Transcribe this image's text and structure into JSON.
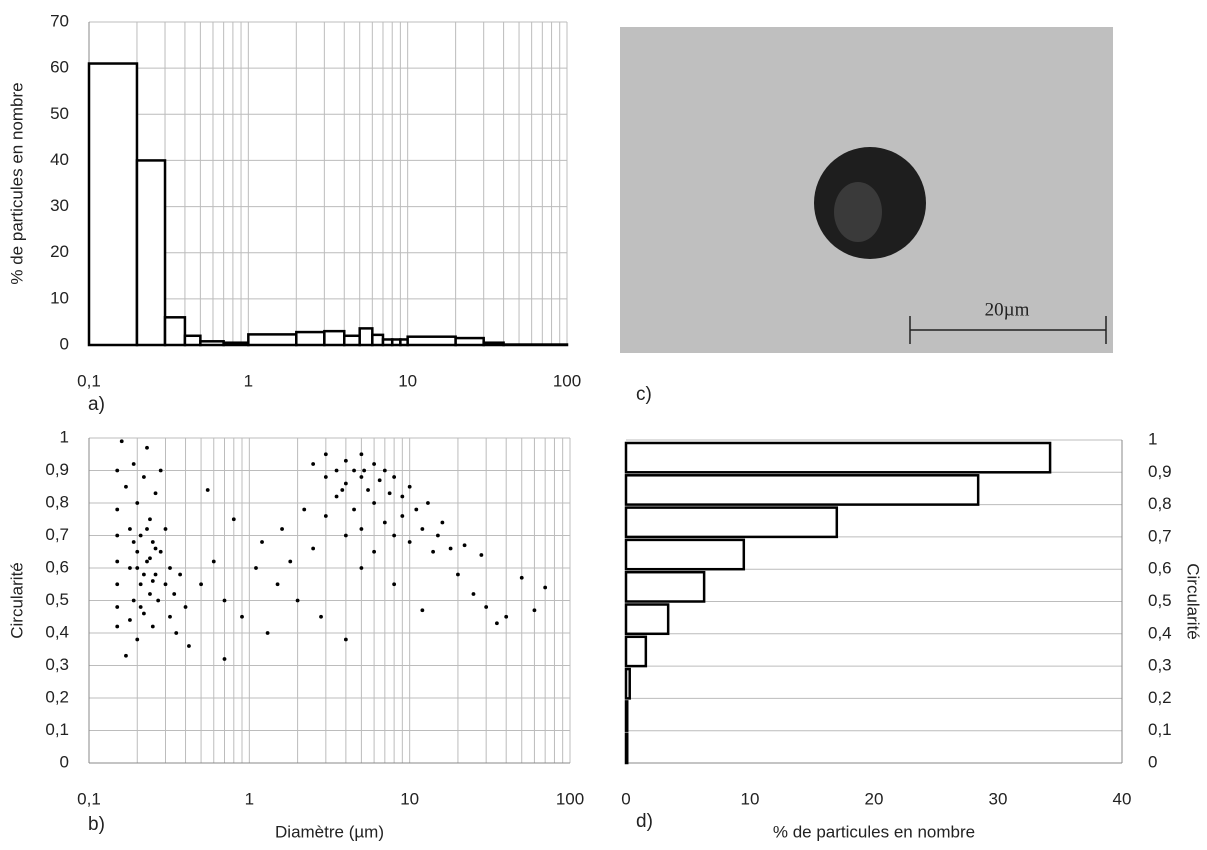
{
  "chart_data": [
    {
      "type": "histogram",
      "panel_label": "a)",
      "y_label": "% de particules en nombre",
      "log_x": true,
      "grid": true,
      "minor_grid": true,
      "color": "#000000",
      "bins": [
        0.1,
        0.2,
        0.3,
        0.4,
        0.5,
        0.7,
        1,
        2,
        3,
        4,
        5,
        6,
        7,
        8,
        9,
        10,
        20,
        30,
        40,
        100
      ],
      "values": [
        61,
        40,
        6,
        2,
        0.8,
        0.5,
        2.3,
        2.8,
        3,
        2,
        3.6,
        2.2,
        1.2,
        1.2,
        1.2,
        1.8,
        1.5,
        0.5,
        0.1
      ],
      "xlim": [
        0.1,
        100
      ],
      "xticks": [
        {
          "value": 0.1,
          "label": "0,1"
        },
        1,
        10,
        100
      ],
      "ylim": [
        0,
        70
      ],
      "yticks": [
        0,
        10,
        20,
        30,
        40,
        50,
        60,
        70
      ]
    },
    {
      "type": "scatter",
      "panel_label": "b)",
      "x_label": "Diamètre (µm)",
      "y_label": "Circularité",
      "log_x": true,
      "grid": true,
      "minor_grid": true,
      "color": "#000000",
      "x": [
        0.15,
        0.15,
        0.15,
        0.15,
        0.15,
        0.15,
        0.15,
        0.16,
        0.17,
        0.17,
        0.18,
        0.18,
        0.19,
        0.19,
        0.2,
        0.2,
        0.2,
        0.21,
        0.21,
        0.22,
        0.22,
        0.23,
        0.23,
        0.24,
        0.24,
        0.25,
        0.25,
        0.26,
        0.26,
        0.27,
        0.28,
        0.28,
        0.3,
        0.3,
        0.32,
        0.32,
        0.34,
        0.35,
        0.37,
        0.4,
        0.42,
        0.2,
        0.22,
        0.24,
        0.26,
        0.19,
        0.23,
        0.21,
        0.25,
        0.18,
        0.5,
        0.55,
        0.6,
        0.7,
        0.7,
        0.8,
        0.9,
        1.1,
        1.2,
        1.3,
        1.5,
        1.6,
        1.8,
        2,
        2.2,
        2.5,
        2.8,
        4,
        5,
        20,
        25,
        30,
        35,
        40,
        50,
        60,
        70,
        28,
        22,
        15,
        12,
        8,
        2.5,
        3,
        3,
        3.5,
        3.5,
        4,
        4,
        4.5,
        4.5,
        5,
        5,
        5.5,
        6,
        6,
        6.5,
        7,
        7,
        7.5,
        8,
        8,
        9,
        9,
        10,
        10,
        11,
        12,
        13,
        14,
        16,
        18,
        4,
        5,
        6,
        3,
        3.8,
        5.2
      ],
      "values": [
        0.62,
        0.48,
        0.78,
        0.9,
        0.55,
        0.7,
        0.42,
        0.99,
        0.33,
        0.85,
        0.6,
        0.72,
        0.5,
        0.92,
        0.65,
        0.38,
        0.8,
        0.55,
        0.7,
        0.46,
        0.88,
        0.62,
        0.97,
        0.52,
        0.75,
        0.68,
        0.42,
        0.58,
        0.83,
        0.5,
        0.65,
        0.9,
        0.55,
        0.72,
        0.45,
        0.6,
        0.52,
        0.4,
        0.58,
        0.48,
        0.36,
        0.6,
        0.58,
        0.63,
        0.66,
        0.68,
        0.72,
        0.48,
        0.56,
        0.44,
        0.55,
        0.84,
        0.62,
        0.32,
        0.5,
        0.75,
        0.45,
        0.6,
        0.68,
        0.4,
        0.55,
        0.72,
        0.62,
        0.5,
        0.78,
        0.66,
        0.45,
        0.38,
        0.6,
        0.58,
        0.52,
        0.48,
        0.43,
        0.45,
        0.57,
        0.47,
        0.54,
        0.64,
        0.67,
        0.7,
        0.47,
        0.55,
        0.92,
        0.88,
        0.95,
        0.9,
        0.82,
        0.93,
        0.86,
        0.9,
        0.78,
        0.95,
        0.88,
        0.84,
        0.92,
        0.8,
        0.87,
        0.9,
        0.74,
        0.83,
        0.88,
        0.7,
        0.82,
        0.76,
        0.85,
        0.68,
        0.78,
        0.72,
        0.8,
        0.65,
        0.74,
        0.66,
        0.7,
        0.72,
        0.65,
        0.76,
        0.84,
        0.9
      ],
      "xlim": [
        0.1,
        100
      ],
      "xticks": [
        {
          "value": 0.1,
          "label": "0,1"
        },
        1,
        10,
        100
      ],
      "ylim": [
        0,
        1
      ],
      "yticks": [
        0,
        {
          "value": 0.1,
          "label": "0,1"
        },
        {
          "value": 0.2,
          "label": "0,2"
        },
        {
          "value": 0.3,
          "label": "0,3"
        },
        {
          "value": 0.4,
          "label": "0,4"
        },
        {
          "value": 0.5,
          "label": "0,5"
        },
        {
          "value": 0.6,
          "label": "0,6"
        },
        {
          "value": 0.7,
          "label": "0,7"
        },
        {
          "value": 0.8,
          "label": "0,8"
        },
        {
          "value": 0.9,
          "label": "0,9"
        },
        1
      ]
    },
    {
      "type": "image",
      "panel_label": "c)",
      "scale_bar_label": "20µm"
    },
    {
      "type": "hbar-histogram",
      "panel_label": "d)",
      "x_label": "% de particules en nombre",
      "y_label": "Circularité",
      "y_axis_side": "right",
      "grid": true,
      "color": "#000000",
      "bins": [
        0,
        0.1,
        0.2,
        0.3,
        0.4,
        0.5,
        0.6,
        0.7,
        0.8,
        0.9,
        1
      ],
      "values": [
        0.1,
        0.1,
        0.3,
        1.6,
        3.4,
        6.3,
        9.5,
        17,
        28.4,
        34.2
      ],
      "xlim": [
        0,
        40
      ],
      "xticks": [
        0,
        10,
        20,
        30,
        40
      ],
      "ylim": [
        0,
        1
      ],
      "yticks": [
        0,
        {
          "value": 0.1,
          "label": "0,1"
        },
        {
          "value": 0.2,
          "label": "0,2"
        },
        {
          "value": 0.3,
          "label": "0,3"
        },
        {
          "value": 0.4,
          "label": "0,4"
        },
        {
          "value": 0.5,
          "label": "0,5"
        },
        {
          "value": 0.6,
          "label": "0,6"
        },
        {
          "value": 0.7,
          "label": "0,7"
        },
        {
          "value": 0.8,
          "label": "0,8"
        },
        {
          "value": 0.9,
          "label": "0,9"
        },
        1
      ]
    }
  ]
}
